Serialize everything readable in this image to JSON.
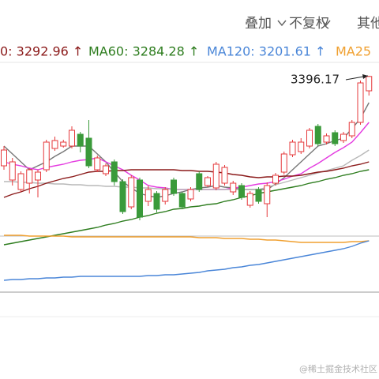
{
  "toolbar": [
    "叠加",
    "不复权",
    "其他"
  ],
  "watermark": "@稀土掘金技术社区",
  "chart_data": {
    "type": "candlestick",
    "ylim": [
      3123,
      3413
    ],
    "up_color": "#e5383b",
    "down_color": "#3a9a3a",
    "open": [
      3283,
      3265,
      3253,
      3261,
      3265,
      3278,
      3305,
      3308,
      3308,
      3323,
      3318,
      3278,
      3273,
      3288,
      3263,
      3231,
      3265,
      3238,
      3248,
      3238,
      3265,
      3248,
      3241,
      3273,
      3258,
      3255,
      3261,
      3250,
      3258,
      3233,
      3253,
      3235,
      3261,
      3275,
      3297,
      3301,
      3308,
      3333,
      3313,
      3325,
      3315,
      3321,
      3338,
      3378
    ],
    "high": [
      3308,
      3293,
      3276,
      3280,
      3278,
      3316,
      3320,
      3316,
      3333,
      3326,
      3341,
      3296,
      3286,
      3291,
      3266,
      3271,
      3268,
      3258,
      3251,
      3256,
      3268,
      3250,
      3256,
      3276,
      3270,
      3288,
      3284,
      3264,
      3261,
      3251,
      3256,
      3262,
      3274,
      3301,
      3316,
      3318,
      3331,
      3336,
      3324,
      3328,
      3326,
      3341,
      3391,
      3397
    ],
    "low": [
      3278,
      3258,
      3250,
      3248,
      3243,
      3275,
      3302,
      3306,
      3305,
      3300,
      3280,
      3275,
      3270,
      3258,
      3222,
      3228,
      3214,
      3232,
      3224,
      3234,
      3245,
      3228,
      3238,
      3250,
      3256,
      3252,
      3258,
      3246,
      3240,
      3230,
      3235,
      3218,
      3258,
      3272,
      3294,
      3298,
      3305,
      3308,
      3310,
      3308,
      3312,
      3318,
      3335,
      3372
    ],
    "close": [
      3303,
      3288,
      3273,
      3278,
      3275,
      3313,
      3315,
      3313,
      3328,
      3308,
      3283,
      3293,
      3283,
      3263,
      3225,
      3268,
      3218,
      3253,
      3228,
      3253,
      3248,
      3231,
      3253,
      3253,
      3268,
      3285,
      3281,
      3261,
      3243,
      3248,
      3238,
      3258,
      3271,
      3298,
      3313,
      3313,
      3328,
      3311,
      3321,
      3311,
      3323,
      3338,
      3388,
      3396.17
    ],
    "lines": [
      {
        "color": "#777777",
        "values": [
          3308,
          3298,
          3288,
          3278,
          3283,
          3288,
          3295,
          3301,
          3308,
          3308,
          3308,
          3298,
          3288,
          3275,
          3263,
          3255,
          3248,
          3245,
          3243,
          3245,
          3248,
          3250,
          3253,
          3255,
          3256,
          3258,
          3256,
          3255,
          3253,
          3253,
          3253,
          3253,
          3260,
          3268,
          3278,
          3288,
          3298,
          3308,
          3311,
          3315,
          3318,
          3330,
          3343,
          3363
        ]
      },
      {
        "color": "#e43be0",
        "values": [
          3288,
          3285,
          3283,
          3280,
          3278,
          3281,
          3283,
          3285,
          3288,
          3290,
          3291,
          3293,
          3288,
          3283,
          3278,
          3271,
          3265,
          3258,
          3256,
          3255,
          3253,
          3253,
          3253,
          3253,
          3253,
          3253,
          3253,
          3255,
          3256,
          3258,
          3260,
          3261,
          3263,
          3266,
          3270,
          3273,
          3280,
          3286,
          3293,
          3300,
          3306,
          3313,
          3325,
          3338
        ]
      },
      {
        "color": "#b8b8b8",
        "values": [
          3263,
          3263,
          3262,
          3262,
          3261,
          3261,
          3260,
          3260,
          3259,
          3259,
          3258,
          3258,
          3257,
          3257,
          3256,
          3256,
          3255,
          3255,
          3254,
          3254,
          3253,
          3253,
          3253,
          3253,
          3253,
          3253,
          3253,
          3253,
          3253,
          3253,
          3253,
          3256,
          3259,
          3262,
          3265,
          3268,
          3271,
          3274,
          3277,
          3280,
          3283,
          3290,
          3296,
          3303
        ]
      },
      {
        "color": "#8b1a1a",
        "values": [
          3243,
          3247,
          3250,
          3254,
          3257,
          3261,
          3264,
          3267,
          3269,
          3272,
          3275,
          3276,
          3276,
          3277,
          3277,
          3278,
          3278,
          3278,
          3278,
          3278,
          3278,
          3277,
          3277,
          3276,
          3276,
          3275,
          3274,
          3272,
          3271,
          3269,
          3268,
          3269,
          3269,
          3270,
          3270,
          3271,
          3273,
          3275,
          3276,
          3278,
          3280,
          3283,
          3285,
          3288
        ]
      },
      {
        "color": "#2e7d1f",
        "values": [
          3183,
          3185,
          3187,
          3189,
          3191,
          3193,
          3195,
          3197,
          3199,
          3201,
          3203,
          3205,
          3208,
          3210,
          3213,
          3215,
          3218,
          3220,
          3223,
          3225,
          3228,
          3229,
          3231,
          3232,
          3234,
          3235,
          3238,
          3240,
          3243,
          3245,
          3248,
          3250,
          3252,
          3254,
          3256,
          3258,
          3261,
          3263,
          3266,
          3268,
          3271,
          3273,
          3276,
          3278
        ]
      },
      {
        "color": "#f0a030",
        "values": [
          3195,
          3195,
          3195,
          3194,
          3194,
          3194,
          3194,
          3194,
          3193,
          3193,
          3193,
          3193,
          3193,
          3193,
          3193,
          3193,
          3193,
          3193,
          3193,
          3193,
          3193,
          3193,
          3193,
          3192,
          3192,
          3192,
          3191,
          3191,
          3191,
          3190,
          3190,
          3189,
          3189,
          3188,
          3187,
          3186,
          3186,
          3186,
          3186,
          3186,
          3186,
          3187,
          3187,
          3188
        ]
      },
      {
        "color": "#4a86d8",
        "values": [
          3138,
          3139,
          3139,
          3140,
          3140,
          3141,
          3141,
          3142,
          3142,
          3143,
          3143,
          3143,
          3143,
          3143,
          3143,
          3143,
          3143,
          3144,
          3144,
          3145,
          3145,
          3146,
          3147,
          3148,
          3150,
          3151,
          3152,
          3154,
          3155,
          3157,
          3158,
          3160,
          3162,
          3164,
          3166,
          3168,
          3170,
          3172,
          3174,
          3176,
          3178,
          3181,
          3185,
          3188
        ]
      }
    ],
    "legend": [
      {
        "text": "0: 3292.96 ↑",
        "color": "#8b1a1a"
      },
      {
        "text": "MA60: 3284.28 ↑",
        "color": "#2e7d1f"
      },
      {
        "text": "MA120: 3201.61 ↑",
        "color": "#4a86d8"
      },
      {
        "text": "MA25",
        "color": "#f0a030"
      }
    ],
    "annotation": "3396.17"
  }
}
